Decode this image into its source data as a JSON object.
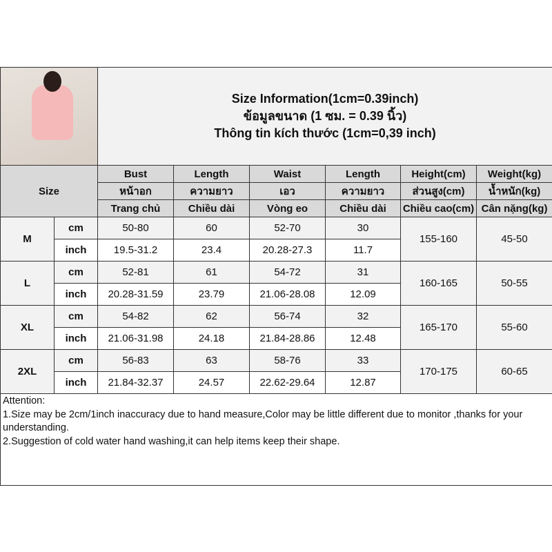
{
  "title_lines": [
    "Size Information(1cm=0.39inch)",
    "ข้อมูลขนาด (1 ซม. = 0.39 นิ้ว)",
    "Thông tin kích thước (1cm=0,39 inch)"
  ],
  "size_label": "Size",
  "headers": [
    [
      "Bust",
      "Length",
      "Waist",
      "Length",
      "Height(cm)",
      "Weight(kg)"
    ],
    [
      "หน้าอก",
      "ความยาว",
      "เอว",
      "ความยาว",
      "ส่วนสูง(cm)",
      "น้ำหนัก(kg)"
    ],
    [
      "Trang chủ",
      "Chiều dài",
      "Vòng eo",
      "Chiều dài",
      "Chiều cao(cm)",
      "Cân nặng(kg)"
    ]
  ],
  "rows": [
    {
      "size": "M",
      "cm": [
        "cm",
        "50-80",
        "60",
        "52-70",
        "30"
      ],
      "inch": [
        "inch",
        "19.5-31.2",
        "23.4",
        "20.28-27.3",
        "11.7"
      ],
      "height": "155-160",
      "weight": "45-50"
    },
    {
      "size": "L",
      "cm": [
        "cm",
        "52-81",
        "61",
        "54-72",
        "31"
      ],
      "inch": [
        "inch",
        "20.28-31.59",
        "23.79",
        "21.06-28.08",
        "12.09"
      ],
      "height": "160-165",
      "weight": "50-55"
    },
    {
      "size": "XL",
      "cm": [
        "cm",
        "54-82",
        "62",
        "56-74",
        "32"
      ],
      "inch": [
        "inch",
        "21.06-31.98",
        "24.18",
        "21.84-28.86",
        "12.48"
      ],
      "height": "165-170",
      "weight": "55-60"
    },
    {
      "size": "2XL",
      "cm": [
        "cm",
        "56-83",
        "63",
        "58-76",
        "33"
      ],
      "inch": [
        "inch",
        "21.84-32.37",
        "24.57",
        "22.62-29.64",
        "12.87"
      ],
      "height": "170-175",
      "weight": "60-65"
    }
  ],
  "attention": [
    "Attention:",
    "1.Size may be 2cm/1inch inaccuracy due to hand measure,Color may be little different due to monitor ,thanks for your understanding.",
    "2.Suggestion of cold water hand washing,it can help items keep their shape."
  ]
}
